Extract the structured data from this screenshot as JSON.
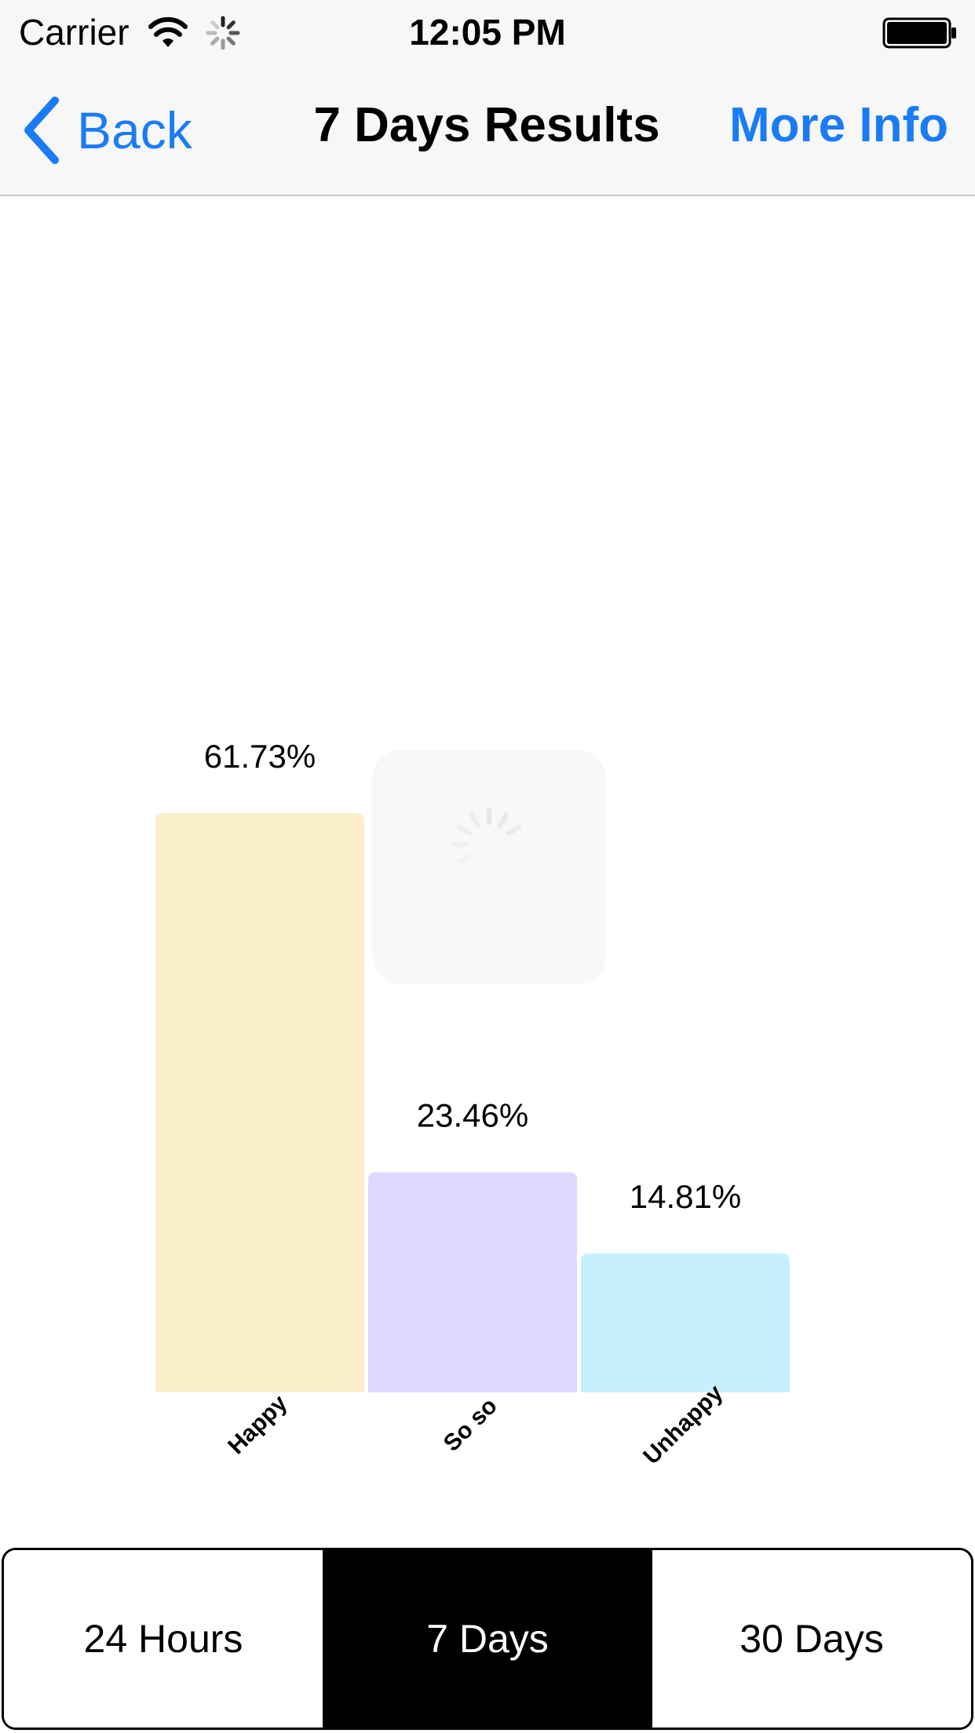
{
  "status_bar": {
    "carrier": "Carrier",
    "time": "12:05 PM",
    "icons": [
      "wifi-icon",
      "activity-spinner-icon",
      "battery-icon"
    ]
  },
  "nav_bar": {
    "back_label": "Back",
    "title": "7 Days Results",
    "more_info_label": "More Info",
    "tint_color": "#1a7cf5"
  },
  "chart_data": {
    "type": "bar",
    "categories": [
      "Happy",
      "So so",
      "Unhappy"
    ],
    "values": [
      61.73,
      23.46,
      14.81
    ],
    "value_labels": [
      "61.73%",
      "23.46%",
      "14.81%"
    ],
    "colors": [
      "#fbefcc",
      "#dcd8ff",
      "#c7f0fd"
    ],
    "ylim": [
      0,
      61.73
    ],
    "grid": false,
    "legend": "none"
  },
  "loading_overlay": {
    "visible": true,
    "icon": "activity-spinner-icon"
  },
  "segments": {
    "items": [
      {
        "label": "24 Hours",
        "selected": false
      },
      {
        "label": "7 Days",
        "selected": true
      },
      {
        "label": "30 Days",
        "selected": false
      }
    ],
    "selected_color": "#000000"
  }
}
